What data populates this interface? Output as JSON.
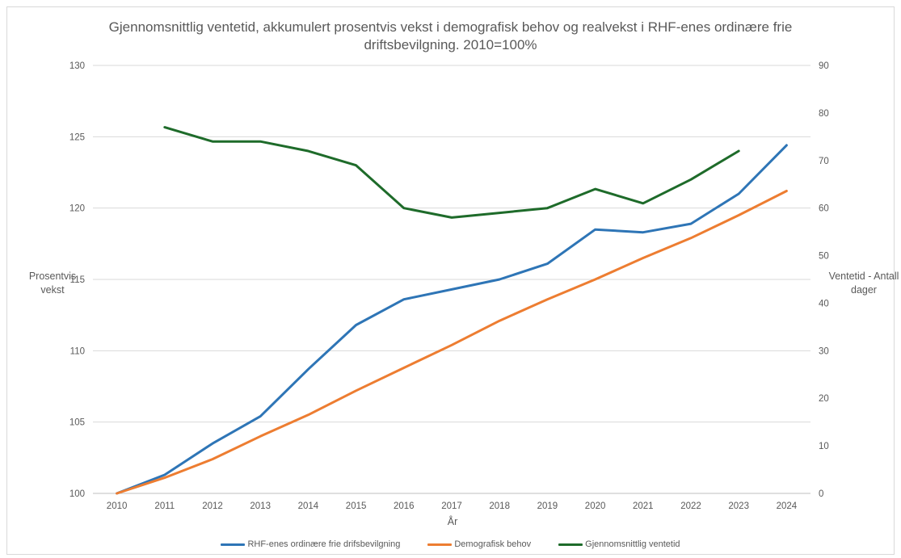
{
  "chart_data": {
    "type": "line",
    "title_line1": "Gjennomsnittlig ventetid, akkumulert prosentvis vekst i demografisk behov og realvekst i RHF-enes ordinære frie",
    "title_line2": "driftsbevilgning. 2010=100%",
    "xlabel": "År",
    "ylabel_left_line1": "Prosentvis",
    "ylabel_left_line2": "vekst",
    "ylabel_right_line1": "Ventetid - Antall",
    "ylabel_right_line2": "dager",
    "x": [
      "2010",
      "2011",
      "2012",
      "2013",
      "2014",
      "2015",
      "2016",
      "2017",
      "2018",
      "2019",
      "2020",
      "2021",
      "2022",
      "2023",
      "2024"
    ],
    "ylim_left": [
      100,
      130
    ],
    "yticks_left": [
      100,
      105,
      110,
      115,
      120,
      125,
      130
    ],
    "ylim_right": [
      0,
      90
    ],
    "yticks_right": [
      0,
      10,
      20,
      30,
      40,
      50,
      60,
      70,
      80,
      90
    ],
    "grid": true,
    "legend_position": "bottom",
    "series": [
      {
        "name": "RHF-enes ordinære frie drifsbevilgning",
        "axis": "left",
        "color": "#2e75b6",
        "values": [
          100,
          101.3,
          103.5,
          105.4,
          108.7,
          111.8,
          113.6,
          114.3,
          115.0,
          116.1,
          118.5,
          118.3,
          118.9,
          121.0,
          124.4
        ]
      },
      {
        "name": "Demografisk behov",
        "axis": "left",
        "color": "#ed7d31",
        "values": [
          100,
          101.1,
          102.4,
          104.0,
          105.5,
          107.2,
          108.8,
          110.4,
          112.1,
          113.6,
          115.0,
          116.5,
          117.9,
          119.5,
          121.2
        ]
      },
      {
        "name": "Gjennomsnittlig ventetid",
        "axis": "right",
        "color": "#1e6b2a",
        "values": [
          null,
          77,
          74,
          74,
          72,
          69,
          60,
          58,
          59,
          60,
          64,
          61,
          66,
          72,
          null
        ]
      }
    ]
  }
}
